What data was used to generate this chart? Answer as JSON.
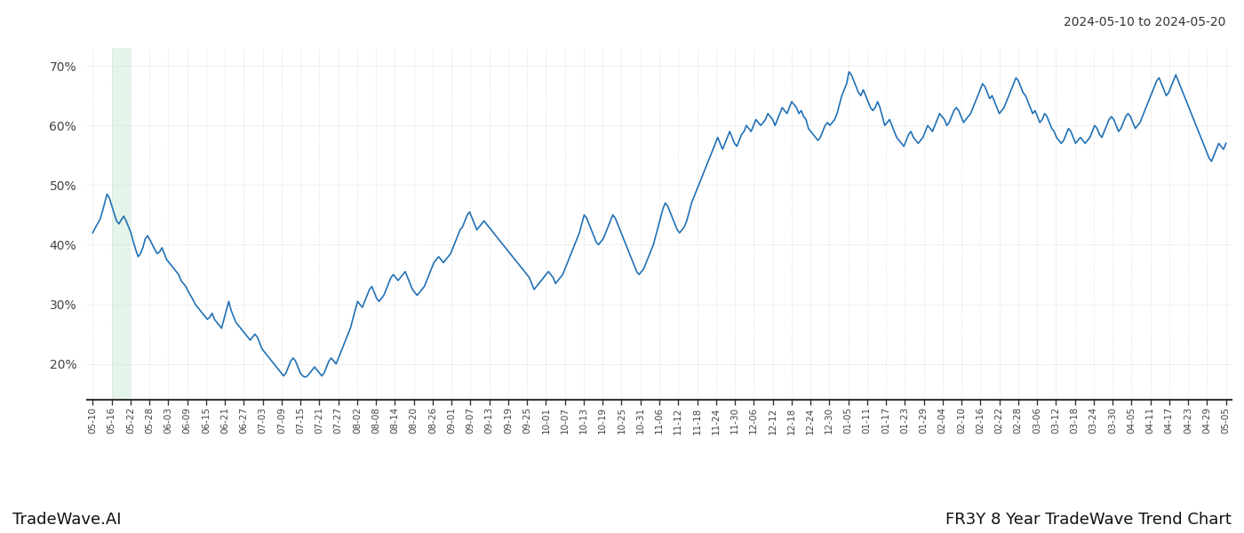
{
  "title_date_range": "2024-05-10 to 2024-05-20",
  "footer_left": "TradeWave.AI",
  "footer_right": "FR3Y 8 Year TradeWave Trend Chart",
  "line_color": "#2171b5",
  "highlight_color": "#d4edda",
  "highlight_alpha": 0.6,
  "background_color": "#ffffff",
  "grid_color": "#cccccc",
  "ylim": [
    14,
    73
  ],
  "ytick_labels": [
    "20%",
    "30%",
    "40%",
    "50%",
    "60%",
    "70%"
  ],
  "ytick_values": [
    20,
    30,
    40,
    50,
    60,
    70
  ],
  "x_labels": [
    "05-10",
    "05-16",
    "05-22",
    "05-28",
    "06-03",
    "06-09",
    "06-15",
    "06-21",
    "06-27",
    "07-03",
    "07-09",
    "07-15",
    "07-21",
    "07-27",
    "08-02",
    "08-08",
    "08-14",
    "08-20",
    "08-26",
    "09-01",
    "09-07",
    "09-13",
    "09-19",
    "09-25",
    "10-01",
    "10-07",
    "10-13",
    "10-19",
    "10-25",
    "10-31",
    "11-06",
    "11-12",
    "11-18",
    "11-24",
    "11-30",
    "12-06",
    "12-12",
    "12-18",
    "12-24",
    "12-30",
    "01-05",
    "01-11",
    "01-17",
    "01-23",
    "01-29",
    "02-04",
    "02-10",
    "02-16",
    "02-22",
    "02-28",
    "03-06",
    "03-12",
    "03-18",
    "03-24",
    "03-30",
    "04-05",
    "04-11",
    "04-17",
    "04-23",
    "04-29",
    "05-05"
  ],
  "highlight_xstart": 1,
  "highlight_xend": 2,
  "values": [
    42.0,
    42.8,
    43.5,
    44.2,
    45.5,
    47.0,
    48.5,
    47.8,
    46.5,
    45.2,
    44.0,
    43.5,
    44.2,
    44.8,
    44.0,
    43.0,
    42.0,
    40.5,
    39.2,
    38.0,
    38.5,
    39.5,
    41.0,
    41.5,
    40.8,
    40.0,
    39.2,
    38.5,
    38.8,
    39.5,
    38.5,
    37.5,
    37.0,
    36.5,
    36.0,
    35.5,
    35.0,
    34.0,
    33.5,
    33.0,
    32.2,
    31.5,
    30.8,
    30.0,
    29.5,
    29.0,
    28.5,
    28.0,
    27.5,
    27.8,
    28.5,
    27.5,
    27.0,
    26.5,
    26.0,
    27.5,
    29.0,
    30.5,
    29.0,
    28.0,
    27.0,
    26.5,
    26.0,
    25.5,
    25.0,
    24.5,
    24.0,
    24.5,
    25.0,
    24.5,
    23.5,
    22.5,
    22.0,
    21.5,
    21.0,
    20.5,
    20.0,
    19.5,
    19.0,
    18.5,
    18.0,
    18.5,
    19.5,
    20.5,
    21.0,
    20.5,
    19.5,
    18.5,
    18.0,
    17.8,
    18.0,
    18.5,
    19.0,
    19.5,
    19.0,
    18.5,
    18.0,
    18.5,
    19.5,
    20.5,
    21.0,
    20.5,
    20.0,
    21.0,
    22.0,
    23.0,
    24.0,
    25.0,
    26.0,
    27.5,
    29.0,
    30.5,
    30.0,
    29.5,
    30.5,
    31.5,
    32.5,
    33.0,
    32.0,
    31.0,
    30.5,
    31.0,
    31.5,
    32.5,
    33.5,
    34.5,
    35.0,
    34.5,
    34.0,
    34.5,
    35.0,
    35.5,
    34.5,
    33.5,
    32.5,
    32.0,
    31.5,
    32.0,
    32.5,
    33.0,
    34.0,
    35.0,
    36.0,
    37.0,
    37.5,
    38.0,
    37.5,
    37.0,
    37.5,
    38.0,
    38.5,
    39.5,
    40.5,
    41.5,
    42.5,
    43.0,
    44.0,
    45.0,
    45.5,
    44.5,
    43.5,
    42.5,
    43.0,
    43.5,
    44.0,
    43.5,
    43.0,
    42.5,
    42.0,
    41.5,
    41.0,
    40.5,
    40.0,
    39.5,
    39.0,
    38.5,
    38.0,
    37.5,
    37.0,
    36.5,
    36.0,
    35.5,
    35.0,
    34.5,
    33.5,
    32.5,
    33.0,
    33.5,
    34.0,
    34.5,
    35.0,
    35.5,
    35.0,
    34.5,
    33.5,
    34.0,
    34.5,
    35.0,
    36.0,
    37.0,
    38.0,
    39.0,
    40.0,
    41.0,
    42.0,
    43.5,
    45.0,
    44.5,
    43.5,
    42.5,
    41.5,
    40.5,
    40.0,
    40.5,
    41.0,
    42.0,
    43.0,
    44.0,
    45.0,
    44.5,
    43.5,
    42.5,
    41.5,
    40.5,
    39.5,
    38.5,
    37.5,
    36.5,
    35.5,
    35.0,
    35.5,
    36.0,
    37.0,
    38.0,
    39.0,
    40.0,
    41.5,
    43.0,
    44.5,
    46.0,
    47.0,
    46.5,
    45.5,
    44.5,
    43.5,
    42.5,
    42.0,
    42.5,
    43.0,
    44.0,
    45.5,
    47.0,
    48.0,
    49.0,
    50.0,
    51.0,
    52.0,
    53.0,
    54.0,
    55.0,
    56.0,
    57.0,
    58.0,
    57.0,
    56.0,
    57.0,
    58.0,
    59.0,
    58.0,
    57.0,
    56.5,
    57.5,
    58.5,
    59.0,
    60.0,
    59.5,
    59.0,
    60.0,
    61.0,
    60.5,
    60.0,
    60.5,
    61.0,
    62.0,
    61.5,
    61.0,
    60.0,
    61.0,
    62.0,
    63.0,
    62.5,
    62.0,
    63.0,
    64.0,
    63.5,
    63.0,
    62.0,
    62.5,
    61.5,
    61.0,
    59.5,
    59.0,
    58.5,
    58.0,
    57.5,
    58.0,
    59.0,
    60.0,
    60.5,
    60.0,
    60.5,
    61.0,
    62.0,
    63.5,
    65.0,
    66.0,
    67.0,
    69.0,
    68.5,
    67.5,
    66.5,
    65.5,
    65.0,
    66.0,
    65.0,
    64.0,
    63.0,
    62.5,
    63.0,
    64.0,
    63.0,
    61.5,
    60.0,
    60.5,
    61.0,
    60.0,
    59.0,
    58.0,
    57.5,
    57.0,
    56.5,
    57.5,
    58.5,
    59.0,
    58.0,
    57.5,
    57.0,
    57.5,
    58.0,
    59.0,
    60.0,
    59.5,
    59.0,
    60.0,
    61.0,
    62.0,
    61.5,
    61.0,
    60.0,
    60.5,
    61.5,
    62.5,
    63.0,
    62.5,
    61.5,
    60.5,
    61.0,
    61.5,
    62.0,
    63.0,
    64.0,
    65.0,
    66.0,
    67.0,
    66.5,
    65.5,
    64.5,
    65.0,
    64.0,
    63.0,
    62.0,
    62.5,
    63.0,
    64.0,
    65.0,
    66.0,
    67.0,
    68.0,
    67.5,
    66.5,
    65.5,
    65.0,
    64.0,
    63.0,
    62.0,
    62.5,
    61.5,
    60.5,
    61.0,
    62.0,
    61.5,
    60.5,
    59.5,
    59.0,
    58.0,
    57.5,
    57.0,
    57.5,
    58.5,
    59.5,
    59.0,
    58.0,
    57.0,
    57.5,
    58.0,
    57.5,
    57.0,
    57.5,
    58.0,
    59.0,
    60.0,
    59.5,
    58.5,
    58.0,
    59.0,
    60.0,
    61.0,
    61.5,
    61.0,
    60.0,
    59.0,
    59.5,
    60.5,
    61.5,
    62.0,
    61.5,
    60.5,
    59.5,
    60.0,
    60.5,
    61.5,
    62.5,
    63.5,
    64.5,
    65.5,
    66.5,
    67.5,
    68.0,
    67.0,
    66.0,
    65.0,
    65.5,
    66.5,
    67.5,
    68.5,
    67.5,
    66.5,
    65.5,
    64.5,
    63.5,
    62.5,
    61.5,
    60.5,
    59.5,
    58.5,
    57.5,
    56.5,
    55.5,
    54.5,
    54.0,
    55.0,
    56.0,
    57.0,
    56.5,
    56.0,
    57.0
  ]
}
